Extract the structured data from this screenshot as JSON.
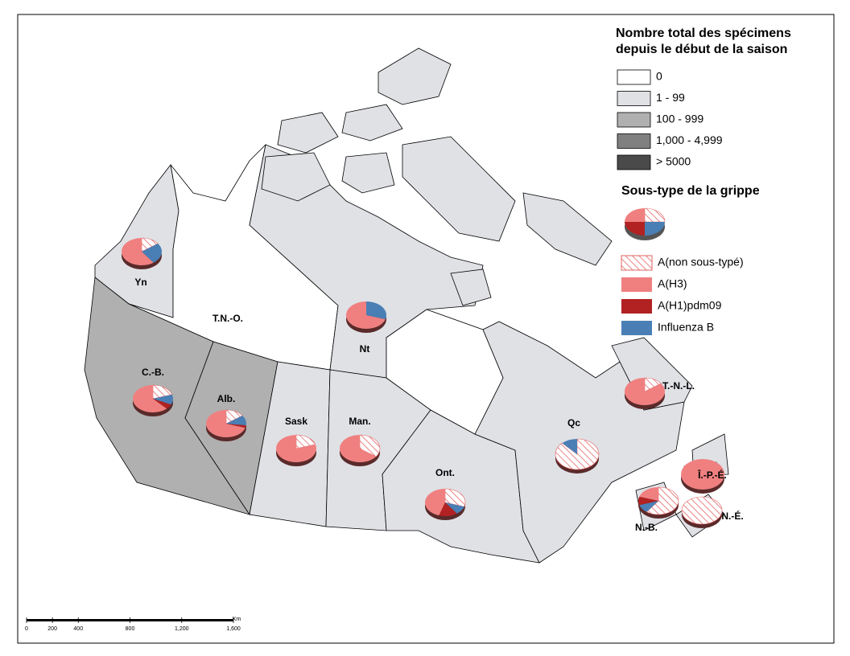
{
  "map": {
    "legend_title": [
      "Nombre total des spécimens",
      "depuis le début de la saison"
    ],
    "bins": [
      {
        "label": "0",
        "color": "#ffffff"
      },
      {
        "label": "1 - 99",
        "color": "#dfe1e5"
      },
      {
        "label": "100 - 999",
        "color": "#b0b0b0"
      },
      {
        "label": "1,000 - 4,999",
        "color": "#808080"
      },
      {
        "label": "> 5000",
        "color": "#4a4a4a"
      }
    ],
    "subtype_title": "Sous-type de la grippe",
    "subtypes": [
      {
        "name": "A(non sous-typé)",
        "color": "#e06060",
        "hatched": true
      },
      {
        "name": "A(H3)",
        "color": "#f08080"
      },
      {
        "name": "A(H1)pdm09",
        "color": "#b22222"
      },
      {
        "name": "Influenza B",
        "color": "#4a7fb5"
      }
    ],
    "regions": [
      {
        "label": "Yn",
        "color": "#dfe1e5",
        "shares": [
          15,
          60,
          0,
          25
        ]
      },
      {
        "label": "T.N.-O.",
        "color": "#ffffff"
      },
      {
        "label": "Nt",
        "color": "#dfe1e5",
        "shares": [
          0,
          70,
          0,
          30
        ]
      },
      {
        "label": "C.-B.",
        "color": "#b0b0b0",
        "shares": [
          20,
          62,
          6,
          12
        ]
      },
      {
        "label": "Alb.",
        "color": "#b0b0b0",
        "shares": [
          15,
          70,
          3,
          12
        ]
      },
      {
        "label": "Sask",
        "color": "#dfe1e5",
        "shares": [
          20,
          80,
          0,
          0
        ]
      },
      {
        "label": "Man.",
        "color": "#dfe1e5",
        "shares": [
          35,
          65,
          0,
          0
        ]
      },
      {
        "label": "Ont.",
        "color": "#dfe1e5",
        "shares": [
          30,
          45,
          15,
          10
        ]
      },
      {
        "label": "Qc",
        "color": "#dfe1e5",
        "shares": [
          88,
          0,
          0,
          12
        ]
      },
      {
        "label": "T.-N.-L.",
        "color": "#dfe1e5",
        "shares": [
          15,
          85,
          0,
          0
        ]
      },
      {
        "label": "Î.-P.-É.",
        "color": "#dfe1e5",
        "shares": [
          0,
          100,
          0,
          0
        ]
      },
      {
        "label": "N.-B.",
        "color": "#dfe1e5",
        "shares": [
          60,
          20,
          10,
          10
        ]
      },
      {
        "label": "N.-É.",
        "color": "#dfe1e5",
        "shares": [
          100,
          0,
          0,
          0
        ]
      }
    ],
    "scale": {
      "unit": "Km",
      "xlim": [
        0,
        1600
      ],
      "ticks": [
        0,
        200,
        400,
        800,
        {
          "value": 1200,
          "label": "1,200"
        },
        {
          "value": 1600,
          "label": "1,600"
        }
      ]
    }
  }
}
